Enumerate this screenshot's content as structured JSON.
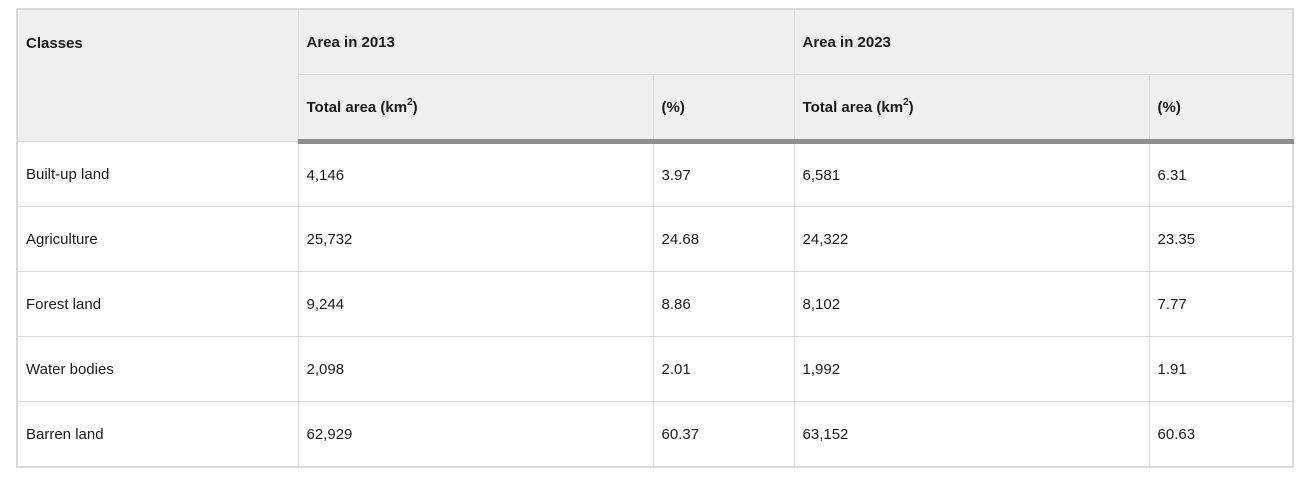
{
  "table": {
    "header": {
      "classes": "Classes",
      "group_2013": "Area in 2013",
      "group_2023": "Area in 2023",
      "total_area_base": "Total area (km",
      "total_area_sup": "2",
      "total_area_close": ")",
      "percent": "(%)"
    },
    "rows": [
      {
        "class": "Built-up land",
        "area_2013": "4,146",
        "pct_2013": "3.97",
        "area_2023": "6,581",
        "pct_2023": "6.31"
      },
      {
        "class": "Agriculture",
        "area_2013": "25,732",
        "pct_2013": "24.68",
        "area_2023": "24,322",
        "pct_2023": "23.35"
      },
      {
        "class": "Forest land",
        "area_2013": "9,244",
        "pct_2013": "8.86",
        "area_2023": "8,102",
        "pct_2023": "7.77"
      },
      {
        "class": "Water bodies",
        "area_2013": "2,098",
        "pct_2013": "2.01",
        "area_2023": "1,992",
        "pct_2023": "1.91"
      },
      {
        "class": "Barren land",
        "area_2013": "62,929",
        "pct_2013": "60.37",
        "area_2023": "63,152",
        "pct_2023": "60.63"
      }
    ]
  }
}
